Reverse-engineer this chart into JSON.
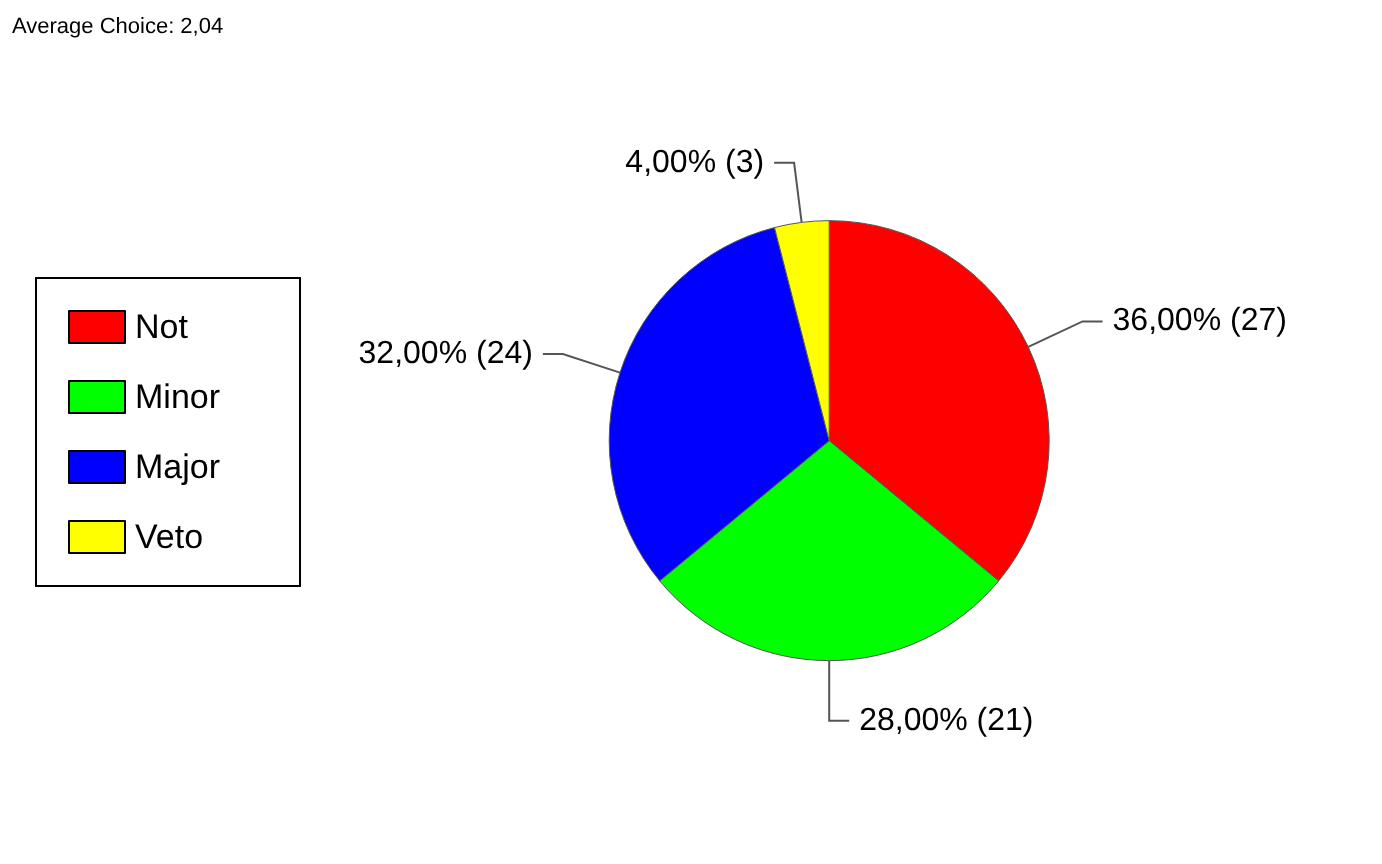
{
  "chart_data": {
    "type": "pie",
    "annotations": [
      "Average Choice: 2,04"
    ],
    "categories": [
      "Not",
      "Minor",
      "Major",
      "Veto"
    ],
    "values": [
      27,
      21,
      24,
      3
    ],
    "value_labels": [
      "36,00% (27)",
      "28,00% (21)",
      "32,00% (24)",
      "4,00% (3)"
    ],
    "colors": [
      "#ff0000",
      "#00ff00",
      "#0000ff",
      "#ffff00"
    ],
    "legend": "left"
  }
}
